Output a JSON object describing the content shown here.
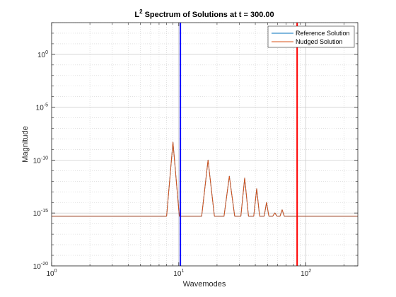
{
  "chart_data": {
    "type": "line",
    "title": {
      "prefix": "L",
      "superscript": "2",
      "rest": " Spectrum of Solutions at t = 300.00"
    },
    "xlabel": "Wavemodes",
    "ylabel": "Magnitude",
    "xscale": "log",
    "yscale": "log",
    "xlim": [
      1,
      256
    ],
    "ylim": [
      1e-20,
      1000.0
    ],
    "grid": true,
    "minor_grid": true,
    "legend_position": "top-right",
    "x_ticks": [
      {
        "value": 1,
        "base": "10",
        "exp": "0"
      },
      {
        "value": 10,
        "base": "10",
        "exp": "1"
      },
      {
        "value": 100,
        "base": "10",
        "exp": "2"
      }
    ],
    "y_ticks": [
      {
        "value": 1.0,
        "base": "10",
        "exp": "0"
      },
      {
        "value": 1e-05,
        "base": "10",
        "exp": "-5"
      },
      {
        "value": 1e-10,
        "base": "10",
        "exp": "-10"
      },
      {
        "value": 1e-15,
        "base": "10",
        "exp": "-15"
      },
      {
        "value": 1e-20,
        "base": "10",
        "exp": "-20"
      }
    ],
    "baseline": 5e-16,
    "series": [
      {
        "name": "Reference Solution",
        "color": "#0072BD"
      },
      {
        "name": "Nudged Solution",
        "color": "#D95319"
      }
    ],
    "peaks": [
      {
        "x": 9,
        "y": 5e-09
      },
      {
        "x": 17,
        "y": 1e-10
      },
      {
        "x": 25,
        "y": 3e-12
      },
      {
        "x": 33,
        "y": 2e-12
      },
      {
        "x": 41,
        "y": 2e-13
      },
      {
        "x": 49,
        "y": 1e-14
      },
      {
        "x": 57,
        "y": 1e-15
      },
      {
        "x": 65,
        "y": 2e-15
      }
    ],
    "vertical_lines": [
      {
        "x": 10.3,
        "color": "#0000FF"
      },
      {
        "x": 85.3,
        "color": "#FF0000"
      }
    ]
  }
}
